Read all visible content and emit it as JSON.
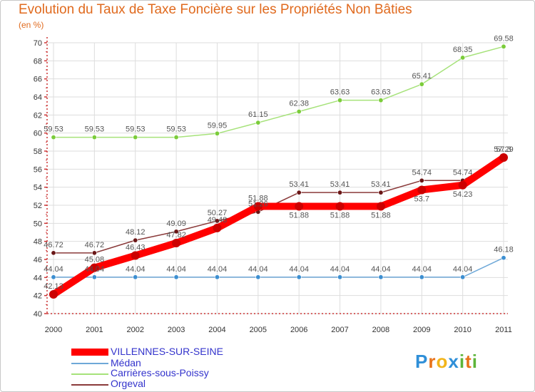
{
  "title": "Evolution du Taux de Taxe Foncière sur les Propriétés Non Bâties",
  "subtitle": "(en %)",
  "logo": {
    "text": "Proxiti",
    "letters": [
      "P",
      "r",
      "o",
      "x",
      "i",
      "t",
      "i"
    ],
    "colors": [
      "#2f8fd8",
      "#e8731a",
      "#f2b51b",
      "#2f8fd8",
      "#5db53a",
      "#e8731a",
      "#5db53a"
    ]
  },
  "chart_data": {
    "type": "line",
    "categories": [
      "2000",
      "2001",
      "2002",
      "2003",
      "2004",
      "2005",
      "2006",
      "2007",
      "2008",
      "2009",
      "2010",
      "2011"
    ],
    "ylim": [
      40,
      70
    ],
    "yticks": [
      "40",
      "42",
      "44",
      "46",
      "48",
      "50",
      "52",
      "54",
      "56",
      "58",
      "60",
      "62",
      "64",
      "66",
      "68",
      "70"
    ],
    "series": [
      {
        "name": "VILLENNES-SUR-SEINE",
        "color": "#ff0000",
        "dot": "#cc0000",
        "width": 10,
        "values": [
          42.13,
          45.08,
          46.43,
          47.82,
          49.48,
          51.88,
          51.88,
          51.88,
          51.88,
          53.7,
          54.23,
          57.29
        ],
        "labels": [
          "42.13",
          "45.08",
          "46.43",
          "47.82",
          "49.48",
          "51.88",
          "51.88",
          "51.88",
          "51.88",
          "53.7",
          "54.23",
          "57.29"
        ],
        "label_pos": [
          "above",
          "above",
          "above",
          "above",
          "above",
          "above",
          "below",
          "below",
          "below",
          "below",
          "below",
          "above"
        ]
      },
      {
        "name": "Médan",
        "color": "#6ea8d8",
        "dot": "#3d8fd1",
        "width": 1.5,
        "values": [
          44.04,
          44.04,
          44.04,
          44.04,
          44.04,
          44.04,
          44.04,
          44.04,
          44.04,
          44.04,
          44.04,
          46.18
        ],
        "labels": [
          "44.04",
          "44.04",
          "44.04",
          "44.04",
          "44.04",
          "44.04",
          "44.04",
          "44.04",
          "44.04",
          "44.04",
          "44.04",
          "46.18"
        ],
        "label_pos": [
          "above",
          "above",
          "above",
          "above",
          "above",
          "above",
          "above",
          "above",
          "above",
          "above",
          "above",
          "above"
        ]
      },
      {
        "name": "Carrières-sous-Poissy",
        "color": "#a6e27a",
        "dot": "#7bcc3a",
        "width": 1.5,
        "values": [
          59.53,
          59.53,
          59.53,
          59.53,
          59.95,
          61.15,
          62.38,
          63.63,
          63.63,
          65.41,
          68.35,
          69.58
        ],
        "labels": [
          "59.53",
          "59.53",
          "59.53",
          "59.53",
          "59.95",
          "61.15",
          "62.38",
          "63.63",
          "63.63",
          "65.41",
          "68.35",
          "69.58"
        ],
        "label_pos": [
          "above",
          "above",
          "above",
          "above",
          "above",
          "above",
          "above",
          "above",
          "above",
          "above",
          "above",
          "above"
        ]
      },
      {
        "name": "Orgeval",
        "color": "#8a3a3a",
        "dot": "#6a1616",
        "width": 1.5,
        "values": [
          46.72,
          46.72,
          48.12,
          49.09,
          50.27,
          51.26,
          53.41,
          53.41,
          53.41,
          54.74,
          54.74,
          57.3
        ],
        "labels": [
          "46.72",
          "46.72",
          "48.12",
          "49.09",
          "50.27",
          "51.26",
          "53.41",
          "53.41",
          "53.41",
          "54.74",
          "54.74",
          "57.3"
        ],
        "label_pos": [
          "above",
          "above",
          "above",
          "above",
          "above",
          "above",
          "above",
          "above",
          "above",
          "above",
          "above",
          "above"
        ]
      }
    ]
  }
}
